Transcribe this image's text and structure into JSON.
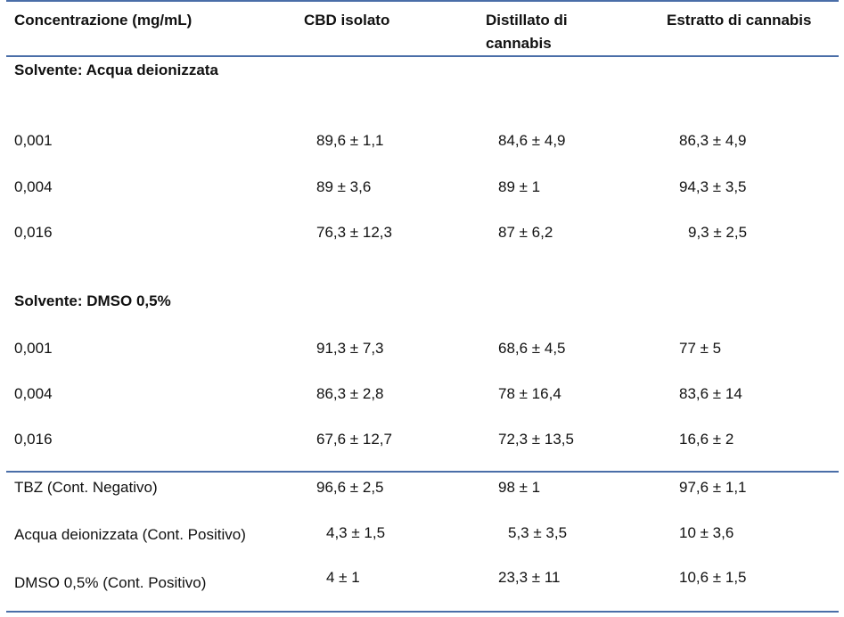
{
  "table": {
    "headers": {
      "col1": "Concentrazione (mg/mL)",
      "col2": "CBD isolato",
      "col3_line1": "Distillato di",
      "col3_line2": "cannabis",
      "col4": "Estratto di cannabis"
    },
    "section1": {
      "title": "Solvente: Acqua deionizzata",
      "rows": [
        {
          "conc": "0,001",
          "cbd": "89,6 ± 1,1",
          "dist": "84,6 ± 4,9",
          "estr": "86,3 ± 4,9"
        },
        {
          "conc": "0,004",
          "cbd": "89 ± 3,6",
          "dist": "89 ± 1",
          "estr": "94,3 ± 3,5"
        },
        {
          "conc": "0,016",
          "cbd": "76,3 ± 12,3",
          "dist": "87 ± 6,2",
          "estr": "9,3 ± 2,5"
        }
      ]
    },
    "section2": {
      "title": "Solvente: DMSO 0,5%",
      "rows": [
        {
          "conc": "0,001",
          "cbd": "91,3 ± 7,3",
          "dist": "68,6 ± 4,5",
          "estr": "77 ± 5"
        },
        {
          "conc": "0,004",
          "cbd": "86,3 ± 2,8",
          "dist": "78 ± 16,4",
          "estr": "83,6 ± 14"
        },
        {
          "conc": "0,016",
          "cbd": "67,6 ± 12,7",
          "dist": "72,3 ± 13,5",
          "estr": "16,6 ± 2"
        }
      ]
    },
    "controls": [
      {
        "label": "TBZ (Cont. Negativo)",
        "cbd": "96,6 ± 2,5",
        "dist": "98 ± 1",
        "estr": "97,6 ± 1,1"
      },
      {
        "label": "Acqua deionizzata (Cont. Positivo)",
        "cbd": "4,3 ± 1,5",
        "dist": "5,3 ± 3,5",
        "estr": "10 ± 3,6"
      },
      {
        "label": "DMSO 0,5% (Cont. Positivo)",
        "cbd": "4 ± 1",
        "dist": "23,3 ± 11",
        "estr": "10,6 ± 1,5"
      }
    ],
    "rule_color": "#4a6ea8"
  }
}
